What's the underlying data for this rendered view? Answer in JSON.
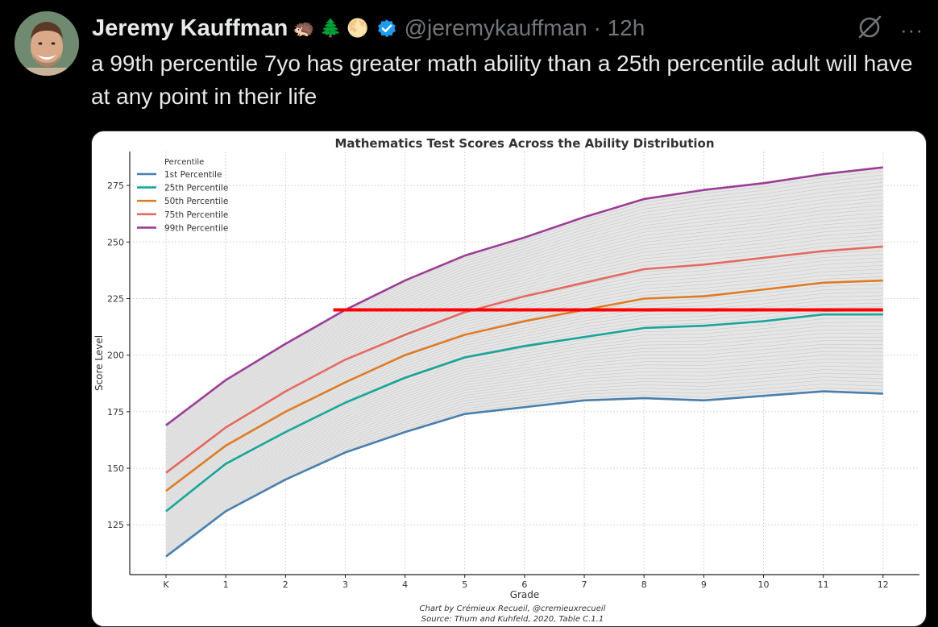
{
  "tweet": {
    "author_name": "Jeremy Kauffman",
    "emojis": [
      "🦔",
      "🌲",
      "🌕"
    ],
    "handle_time": "@jeremykauffman · 12h",
    "text": "a 99th percentile 7yo has greater math ability than a 25th percentile adult will have at any point in their life",
    "more_label": "···",
    "accent_color": "#1d9bf0"
  },
  "chart_data": {
    "type": "line",
    "title": "Mathematics Test Scores Across the Ability Distribution",
    "xlabel": "Grade",
    "ylabel": "Score Level",
    "categories": [
      "K",
      "1",
      "2",
      "3",
      "4",
      "5",
      "6",
      "7",
      "8",
      "9",
      "10",
      "11",
      "12"
    ],
    "y_ticks": [
      125,
      150,
      175,
      200,
      225,
      250,
      275
    ],
    "ylim": [
      103,
      290
    ],
    "grid": true,
    "legend_title": "Percentile",
    "legend_position": "top-left",
    "series": [
      {
        "name": "1st Percentile",
        "color": "#4a7fad",
        "values": [
          111,
          131,
          145,
          157,
          166,
          174,
          177,
          180,
          181,
          180,
          182,
          184,
          183
        ]
      },
      {
        "name": "25th Percentile",
        "color": "#1aa59a",
        "values": [
          131,
          152,
          166,
          179,
          190,
          199,
          204,
          208,
          212,
          213,
          215,
          218,
          218
        ]
      },
      {
        "name": "50th Percentile",
        "color": "#de7b26",
        "values": [
          140,
          160,
          175,
          188,
          200,
          209,
          215,
          220,
          225,
          226,
          229,
          232,
          233
        ]
      },
      {
        "name": "75th Percentile",
        "color": "#e46a60",
        "values": [
          148,
          168,
          184,
          198,
          209,
          219,
          226,
          232,
          238,
          240,
          243,
          246,
          248
        ]
      },
      {
        "name": "99th Percentile",
        "color": "#9b3d96",
        "values": [
          169,
          189,
          205,
          220,
          233,
          244,
          252,
          261,
          269,
          273,
          276,
          280,
          283
        ]
      }
    ],
    "annotation_line": {
      "y": 220,
      "x_from": 2.8,
      "x_to": 12,
      "color": "#ff0000"
    },
    "credit": "Chart by Crémieux Recueil, @cremieuxrecueil",
    "source": "Source: Thum and Kuhfeld, 2020, Table C.1.1"
  }
}
